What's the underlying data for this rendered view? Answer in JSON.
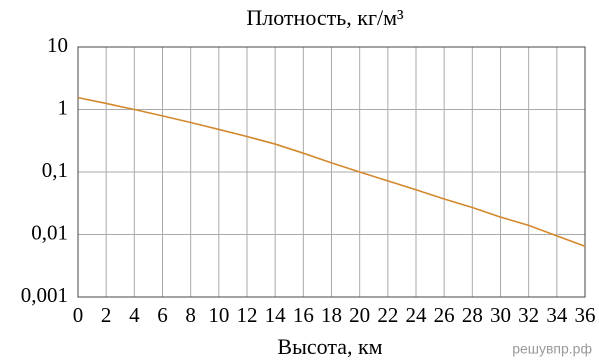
{
  "chart_data": {
    "type": "line",
    "title": "Плотность, кг/м³",
    "x_label": "Высота, км",
    "watermark": "решувпр.рф",
    "x": [
      0,
      2,
      4,
      6,
      8,
      10,
      12,
      14,
      16,
      18,
      20,
      22,
      24,
      26,
      28,
      30,
      32,
      34,
      36
    ],
    "series": [
      {
        "color": "#d4882e",
        "values": [
          1.55,
          1.25,
          1.0,
          0.79,
          0.62,
          0.48,
          0.37,
          0.28,
          0.2,
          0.14,
          0.1,
          0.072,
          0.052,
          0.037,
          0.027,
          0.019,
          0.014,
          0.0095,
          0.0065
        ]
      }
    ],
    "xlim": [
      0,
      36
    ],
    "xticks": [
      0,
      2,
      4,
      6,
      8,
      10,
      12,
      14,
      16,
      18,
      20,
      22,
      24,
      26,
      28,
      30,
      32,
      34,
      36
    ],
    "ylim": [
      0.001,
      10
    ],
    "log_y": true,
    "yticks": [
      {
        "value": 0.001,
        "label": "0,001"
      },
      {
        "value": 0.01,
        "label": "0,01"
      },
      {
        "value": 0.1,
        "label": "0,1"
      },
      1,
      10
    ],
    "grid": true
  }
}
